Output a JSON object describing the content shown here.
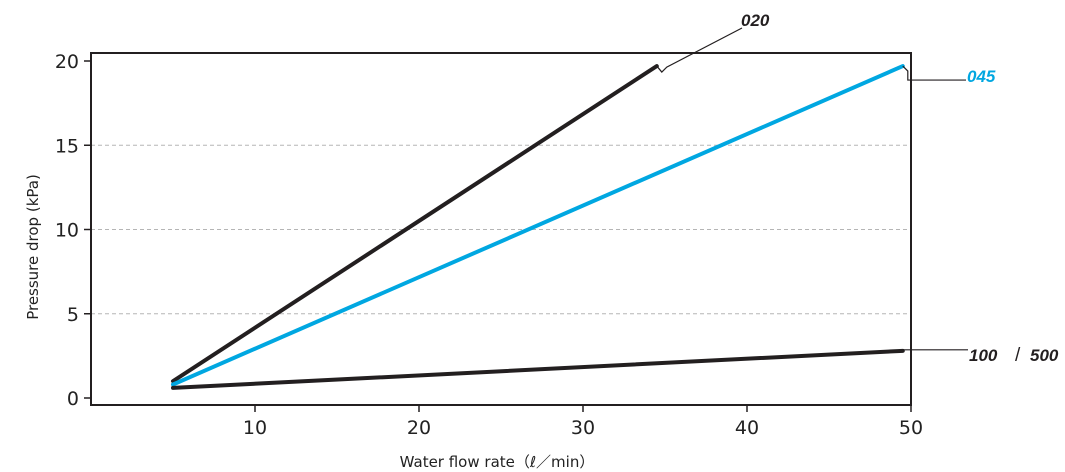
{
  "chart_data": {
    "type": "line",
    "title": "",
    "xlabel": "Water flow rate（ℓ／min）",
    "ylabel": "Pressure drop (kPa)",
    "xlim": [
      0,
      50
    ],
    "ylim": [
      0,
      20
    ],
    "x_ticks": [
      "10",
      "20",
      "30",
      "40",
      "50"
    ],
    "y_ticks": [
      "0",
      "5",
      "10",
      "15",
      "20"
    ],
    "grid": "horizontal dashed",
    "series": [
      {
        "name": "020",
        "color": "#231f20",
        "x": [
          5,
          34.5
        ],
        "y": [
          1.0,
          19.7
        ]
      },
      {
        "name": "045",
        "color": "#00a7e1",
        "x": [
          5,
          49.5
        ],
        "y": [
          0.8,
          19.7
        ]
      },
      {
        "name": "100",
        "color": "#231f20",
        "x": [
          5,
          49.5
        ],
        "y": [
          0.6,
          2.8
        ]
      }
    ],
    "annotations": {
      "label_020": "020",
      "label_045": "045",
      "label_100": "100",
      "label_sep": "/",
      "label_500": "500"
    }
  }
}
